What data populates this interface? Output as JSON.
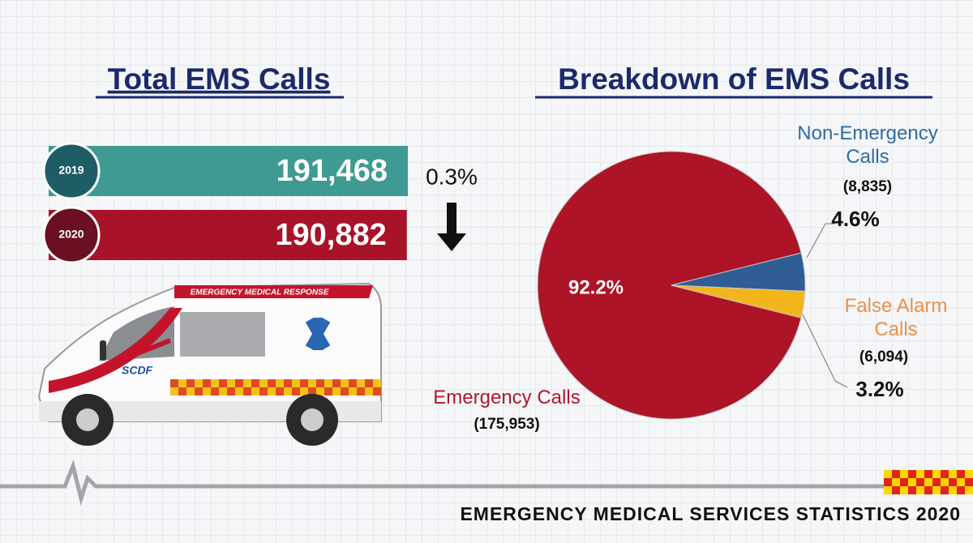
{
  "chart_data": [
    {
      "type": "bar",
      "title": "Total EMS Calls",
      "categories": [
        "2019",
        "2020"
      ],
      "values": [
        191468,
        190882
      ],
      "value_labels": [
        "191,468",
        "190,882"
      ],
      "colors": [
        "#3e9a93",
        "#a8132a"
      ],
      "circle_colors": [
        "#1f5d66",
        "#6b0f22"
      ],
      "annotation": "0.3%"
    },
    {
      "type": "pie",
      "title": "Breakdown of EMS Calls",
      "categories": [
        "Emergency Calls",
        "Non-Emergency Calls",
        "False Alarm Calls"
      ],
      "values": [
        92.2,
        4.6,
        3.2
      ],
      "value_labels": [
        "92.2%",
        "4.6%",
        "3.2%"
      ],
      "counts": [
        175953,
        8835,
        6094
      ],
      "count_labels": [
        "(175,953)",
        "(8,835)",
        "(6,094)"
      ],
      "colors": [
        "#ad1428",
        "#2f5d94",
        "#f2b61c"
      ],
      "label_colors": [
        "#b0182b",
        "#2e6da4",
        "#e8914a"
      ]
    }
  ],
  "footer": "EMERGENCY MEDICAL SERVICES STATISTICS 2020"
}
